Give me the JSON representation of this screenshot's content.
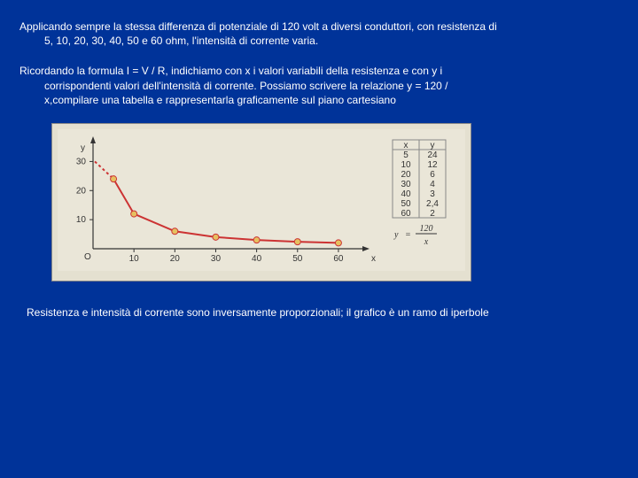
{
  "paragraph1": {
    "line1": "Applicando sempre la stessa differenza di potenziale di 120 volt a diversi conduttori, con resistenza di",
    "line2": "5, 10, 20, 30, 40, 50 e 60 ohm, l'intensità di corrente varia."
  },
  "paragraph2": {
    "line1": "Ricordando la formula I = V / R, indichiamo con x i valori variabili della resistenza e con y i",
    "line2": "corrispondenti valori dell'inten­sità di corrente. Possiamo scri­vere la relazione y = 120 /",
    "line3": "x,compilare una tabella e rap­presentarla graficamente sul piano cartesiano"
  },
  "caption": "Resistenza e intensità di corrente sono inversamente proporzionali; il grafico è un ramo di iperbole",
  "chart": {
    "type": "line",
    "x_values": [
      5,
      10,
      20,
      30,
      40,
      50,
      60
    ],
    "y_values": [
      24,
      12,
      6,
      4,
      3,
      2.4,
      2
    ],
    "line_color": "#cc3333",
    "marker_color": "#e6c060",
    "marker_stroke": "#cc3333",
    "marker_radius": 3.5,
    "line_width": 2,
    "background": "#eae6d8",
    "grid_color": "#cccccc",
    "axis_color": "#333333",
    "y_label": "y",
    "x_label": "x",
    "origin_label": "O",
    "x_ticks": [
      10,
      20,
      30,
      40,
      50,
      60
    ],
    "y_ticks": [
      10,
      20,
      30
    ],
    "xlim": [
      0,
      65
    ],
    "ylim": [
      0,
      35
    ]
  },
  "table": {
    "header_x": "x",
    "header_y": "y",
    "rows": [
      [
        "5",
        "24"
      ],
      [
        "10",
        "12"
      ],
      [
        "20",
        "6"
      ],
      [
        "30",
        "4"
      ],
      [
        "40",
        "3"
      ],
      [
        "50",
        "2,4"
      ],
      [
        "60",
        "2"
      ]
    ],
    "border_color": "#888",
    "background": "#eae6d8"
  },
  "formula": {
    "lhs": "y",
    "rhs_num": "120",
    "rhs_den": "x",
    "eq": "="
  }
}
